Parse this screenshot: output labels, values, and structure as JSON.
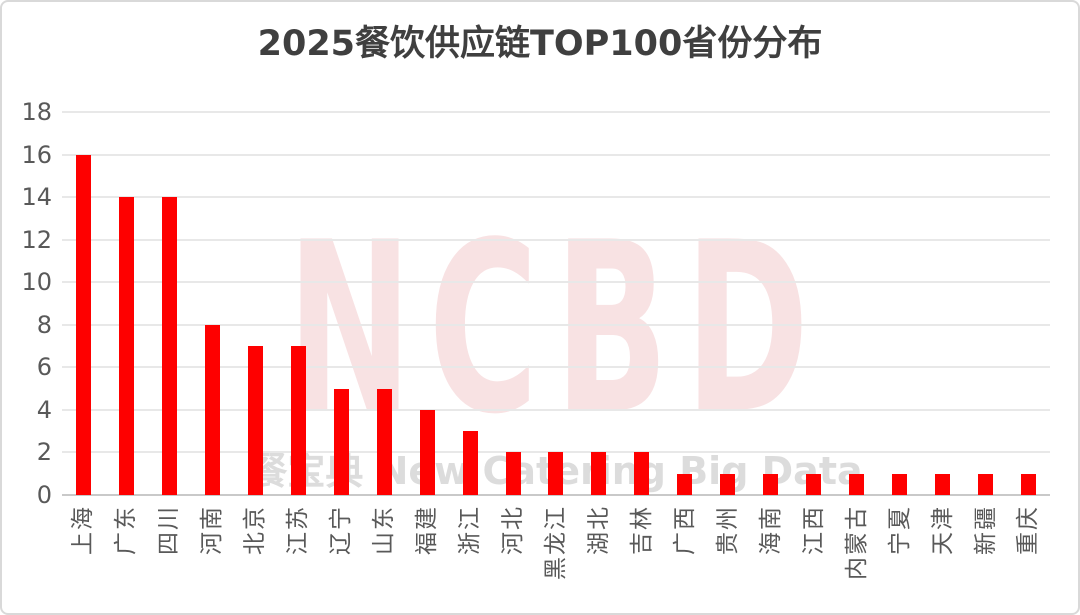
{
  "title": "2025餐饮供应链TOP100省份分布",
  "watermark": {
    "logo": "NCBD",
    "subtitle": "餐宝典 New Catering Big Data"
  },
  "colors": {
    "bar": "#fe0000",
    "gridline": "#e8e8e8",
    "axis_line": "#c9c9c9",
    "title_text": "#3f3f3f",
    "axis_label_text": "#595959",
    "watermark_logo": "#f8e2e3",
    "watermark_subtitle": "#dcdcdc",
    "frame_border": "#d9d9d9"
  },
  "chart_data": {
    "type": "bar",
    "title": "2025餐饮供应链TOP100省份分布",
    "xlabel": "",
    "ylabel": "",
    "categories": [
      "上海",
      "广东",
      "四川",
      "河南",
      "北京",
      "江苏",
      "辽宁",
      "山东",
      "福建",
      "浙江",
      "河北",
      "黑龙江",
      "湖北",
      "吉林",
      "广西",
      "贵州",
      "海南",
      "江西",
      "内蒙古",
      "宁夏",
      "天津",
      "新疆",
      "重庆"
    ],
    "values": [
      16,
      14,
      14,
      8,
      7,
      7,
      5,
      5,
      4,
      3,
      2,
      2,
      2,
      2,
      1,
      1,
      1,
      1,
      1,
      1,
      1,
      1,
      1
    ],
    "ylim": [
      0,
      18
    ],
    "yticks": [
      0,
      2,
      4,
      6,
      8,
      10,
      12,
      14,
      16,
      18
    ],
    "grid": true,
    "legend": false,
    "bar_color": "#fe0000",
    "x_label_rotation": -90
  }
}
